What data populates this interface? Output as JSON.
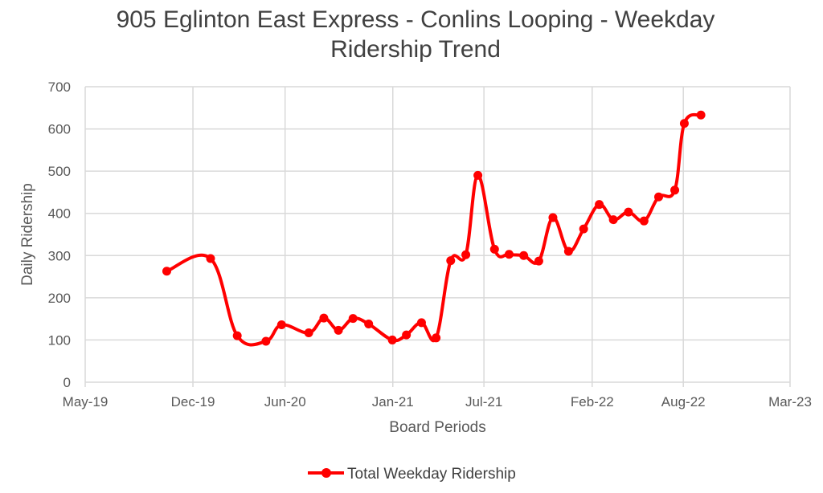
{
  "chart_data": {
    "type": "line",
    "title_line1": "905 Eglinton East Express - Conlins Looping - Weekday",
    "title_line2": "Ridership Trend",
    "xlabel": "Board Periods",
    "ylabel": "Daily  Ridership",
    "ylim": [
      0,
      700
    ],
    "yticks": [
      0,
      100,
      200,
      300,
      400,
      500,
      600,
      700
    ],
    "xlim": [
      "2019-05-01",
      "2023-03-01"
    ],
    "xticks": [
      {
        "date": "2019-05-01",
        "label": "May-19"
      },
      {
        "date": "2019-12-01",
        "label": "Dec-19"
      },
      {
        "date": "2020-06-01",
        "label": "Jun-20"
      },
      {
        "date": "2021-01-01",
        "label": "Jan-21"
      },
      {
        "date": "2021-07-01",
        "label": "Jul-21"
      },
      {
        "date": "2022-02-01",
        "label": "Feb-22"
      },
      {
        "date": "2022-08-01",
        "label": "Aug-22"
      },
      {
        "date": "2023-03-01",
        "label": "Mar-23"
      }
    ],
    "grid": true,
    "legend_position": "bottom",
    "series": [
      {
        "name": "Total Weekday Ridership",
        "color": "#ff0000",
        "points": [
          {
            "x": "2019-10-10",
            "y": 263
          },
          {
            "x": "2020-01-05",
            "y": 293
          },
          {
            "x": "2020-02-27",
            "y": 110
          },
          {
            "x": "2020-04-24",
            "y": 97
          },
          {
            "x": "2020-05-25",
            "y": 136
          },
          {
            "x": "2020-07-18",
            "y": 117
          },
          {
            "x": "2020-08-17",
            "y": 152
          },
          {
            "x": "2020-09-15",
            "y": 123
          },
          {
            "x": "2020-10-14",
            "y": 151
          },
          {
            "x": "2020-11-14",
            "y": 138
          },
          {
            "x": "2020-12-31",
            "y": 100
          },
          {
            "x": "2021-01-28",
            "y": 112
          },
          {
            "x": "2021-02-27",
            "y": 141
          },
          {
            "x": "2021-03-28",
            "y": 105
          },
          {
            "x": "2021-04-26",
            "y": 288
          },
          {
            "x": "2021-05-26",
            "y": 302
          },
          {
            "x": "2021-06-19",
            "y": 490
          },
          {
            "x": "2021-07-22",
            "y": 315
          },
          {
            "x": "2021-08-20",
            "y": 303
          },
          {
            "x": "2021-09-18",
            "y": 300
          },
          {
            "x": "2021-10-18",
            "y": 287
          },
          {
            "x": "2021-11-15",
            "y": 390
          },
          {
            "x": "2021-12-16",
            "y": 310
          },
          {
            "x": "2022-01-15",
            "y": 363
          },
          {
            "x": "2022-02-15",
            "y": 421
          },
          {
            "x": "2022-03-15",
            "y": 385
          },
          {
            "x": "2022-04-14",
            "y": 403
          },
          {
            "x": "2022-05-15",
            "y": 382
          },
          {
            "x": "2022-06-13",
            "y": 439
          },
          {
            "x": "2022-07-15",
            "y": 455
          },
          {
            "x": "2022-08-03",
            "y": 613
          },
          {
            "x": "2022-09-05",
            "y": 633
          }
        ]
      }
    ]
  }
}
